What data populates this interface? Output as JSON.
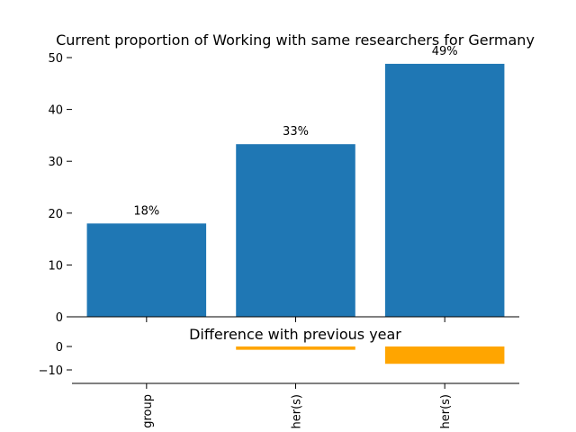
{
  "chart_data": [
    {
      "type": "bar",
      "title": "Current proportion of Working with same researchers for Germany",
      "categories": [
        "group",
        "her(s)",
        "her(s)"
      ],
      "values": [
        18,
        33.3,
        48.8
      ],
      "data_labels": [
        "18%",
        "33%",
        "49%"
      ],
      "ylim": [
        0,
        50
      ],
      "yticks": [
        "0",
        "10",
        "20",
        "30",
        "40",
        "50"
      ],
      "xlabel": "",
      "ylabel": "",
      "grid": false,
      "colors": [
        "#1f77b4"
      ]
    },
    {
      "type": "bar",
      "title": "Difference with previous year",
      "categories": [
        "group",
        "her(s)",
        "her(s)"
      ],
      "values": [
        0,
        -1.4,
        -7.4
      ],
      "ylim": [
        -15,
        3
      ],
      "yticks": [
        "0",
        "−10"
      ],
      "xlabel": "",
      "ylabel": "",
      "grid": false,
      "colors": [
        "#ffa500"
      ]
    }
  ]
}
